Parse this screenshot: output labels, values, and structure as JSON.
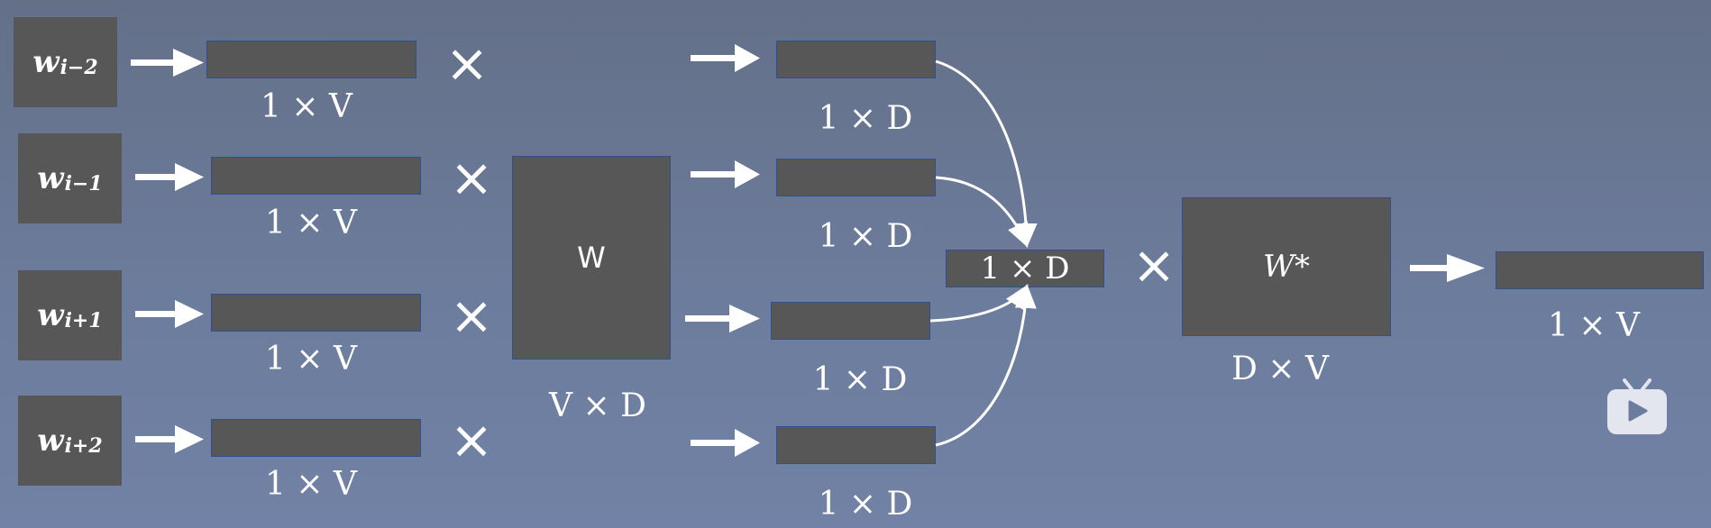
{
  "inputs": [
    {
      "symbol": "w",
      "subscript": "i−2"
    },
    {
      "symbol": "w",
      "subscript": "i−1"
    },
    {
      "symbol": "w",
      "subscript": "i+1"
    },
    {
      "symbol": "w",
      "subscript": "i+2"
    }
  ],
  "onehot_label": "1 × V",
  "w_matrix": {
    "label": "W",
    "dims": "V × D"
  },
  "embed_label": "1 × D",
  "sum_label": "1 × D",
  "w_star": {
    "label": "W*",
    "dims": "D × V"
  },
  "output_label": "1 × V",
  "icons": {
    "multiply": "×",
    "arrow": "arrow-right-icon",
    "logo": "tv-play-icon"
  }
}
